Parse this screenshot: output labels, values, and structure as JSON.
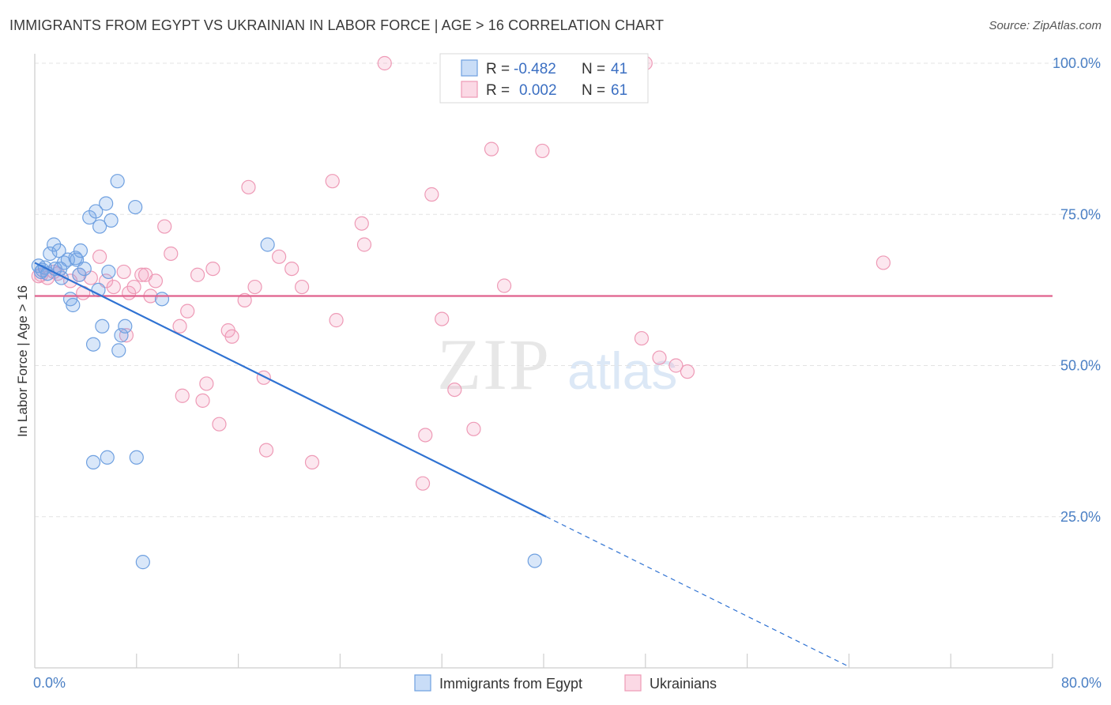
{
  "title": "IMMIGRANTS FROM EGYPT VS UKRAINIAN IN LABOR FORCE | AGE > 16 CORRELATION CHART",
  "source": "Source: ZipAtlas.com",
  "watermark": {
    "zip": "ZIP",
    "atlas": "atlas"
  },
  "colors": {
    "egypt_fill": "rgba(120,170,235,0.28)",
    "egypt_stroke": "#6fa0e0",
    "egypt_line": "#2f72d2",
    "ukr_fill": "rgba(245,160,190,0.25)",
    "ukr_stroke": "#ee9ab6",
    "ukr_line": "#e0628d",
    "tick": "#4a7fc4"
  },
  "legend": {
    "r_label": "R =",
    "n_label": "N =",
    "egypt_r": "-0.482",
    "egypt_n": "41",
    "ukr_r": "0.002",
    "ukr_n": "61"
  },
  "chart_data": {
    "type": "scatter",
    "xlabel": "",
    "ylabel": "In Labor Force | Age > 16",
    "xlim": [
      0,
      80
    ],
    "ylim": [
      0,
      100
    ],
    "x_tick_labels": [
      "0.0%",
      "80.0%"
    ],
    "y_ticks": [
      25,
      50,
      75,
      100
    ],
    "y_tick_labels": [
      "25.0%",
      "50.0%",
      "75.0%",
      "100.0%"
    ],
    "series": [
      {
        "name": "Immigrants from Egypt",
        "r": -0.482,
        "n": 41,
        "trend": {
          "x0": 0,
          "y0": 67.0,
          "x1": 40.2,
          "y1": 25.0,
          "dash_x1": 64.0,
          "dash_y1": 0.2
        },
        "points": [
          [
            0.3,
            66.5
          ],
          [
            0.5,
            65.5
          ],
          [
            0.6,
            65.8
          ],
          [
            0.8,
            66.2
          ],
          [
            1.0,
            65.2
          ],
          [
            1.2,
            68.5
          ],
          [
            1.5,
            70.0
          ],
          [
            1.6,
            66.0
          ],
          [
            1.9,
            69.0
          ],
          [
            2.1,
            64.5
          ],
          [
            2.3,
            67.0
          ],
          [
            2.6,
            67.5
          ],
          [
            2.8,
            61.0
          ],
          [
            3.0,
            60.0
          ],
          [
            3.2,
            67.8
          ],
          [
            3.3,
            67.5
          ],
          [
            3.5,
            65.0
          ],
          [
            3.6,
            69.0
          ],
          [
            3.9,
            66.0
          ],
          [
            4.3,
            74.5
          ],
          [
            4.6,
            53.5
          ],
          [
            4.8,
            75.5
          ],
          [
            5.0,
            62.5
          ],
          [
            5.1,
            73.0
          ],
          [
            5.3,
            56.5
          ],
          [
            5.6,
            76.8
          ],
          [
            5.8,
            65.5
          ],
          [
            6.0,
            74.0
          ],
          [
            6.5,
            80.5
          ],
          [
            6.6,
            52.5
          ],
          [
            6.8,
            55.0
          ],
          [
            7.1,
            56.5
          ],
          [
            7.9,
            76.2
          ],
          [
            4.6,
            34.0
          ],
          [
            5.7,
            34.8
          ],
          [
            8.0,
            34.8
          ],
          [
            8.5,
            17.5
          ],
          [
            10.0,
            61.0
          ],
          [
            18.3,
            70.0
          ],
          [
            39.3,
            17.7
          ],
          [
            2.0,
            66.0
          ]
        ]
      },
      {
        "name": "Ukrainians",
        "r": 0.002,
        "n": 61,
        "trend": {
          "y": 61.5
        },
        "points": [
          [
            0.5,
            65.0
          ],
          [
            1.0,
            64.5
          ],
          [
            1.5,
            65.5
          ],
          [
            2.8,
            64.0
          ],
          [
            3.5,
            65.0
          ],
          [
            3.8,
            62.0
          ],
          [
            4.4,
            64.5
          ],
          [
            5.1,
            68.0
          ],
          [
            5.6,
            64.0
          ],
          [
            6.2,
            63.0
          ],
          [
            7.0,
            65.5
          ],
          [
            7.2,
            55.0
          ],
          [
            7.4,
            62.0
          ],
          [
            7.8,
            63.0
          ],
          [
            8.4,
            65.0
          ],
          [
            8.7,
            65.0
          ],
          [
            9.1,
            61.5
          ],
          [
            9.5,
            64.0
          ],
          [
            10.2,
            73.0
          ],
          [
            10.7,
            68.5
          ],
          [
            11.4,
            56.5
          ],
          [
            11.6,
            45.0
          ],
          [
            12.0,
            59.0
          ],
          [
            12.8,
            65.0
          ],
          [
            13.2,
            44.2
          ],
          [
            13.5,
            47.0
          ],
          [
            14.0,
            66.0
          ],
          [
            14.5,
            40.3
          ],
          [
            15.2,
            55.8
          ],
          [
            15.5,
            54.8
          ],
          [
            16.5,
            60.8
          ],
          [
            16.8,
            79.5
          ],
          [
            17.3,
            63.0
          ],
          [
            18.0,
            48.0
          ],
          [
            18.2,
            36.0
          ],
          [
            19.2,
            68.0
          ],
          [
            20.2,
            66.0
          ],
          [
            21.0,
            63.0
          ],
          [
            21.8,
            34.0
          ],
          [
            23.4,
            80.5
          ],
          [
            23.7,
            57.5
          ],
          [
            25.7,
            73.5
          ],
          [
            25.9,
            70.0
          ],
          [
            27.5,
            100.0
          ],
          [
            30.5,
            30.5
          ],
          [
            30.7,
            38.5
          ],
          [
            31.2,
            78.3
          ],
          [
            32.0,
            57.7
          ],
          [
            33.0,
            46.0
          ],
          [
            34.5,
            39.5
          ],
          [
            35.9,
            85.8
          ],
          [
            36.9,
            63.2
          ],
          [
            39.9,
            85.5
          ],
          [
            47.7,
            54.5
          ],
          [
            48.0,
            100.0
          ],
          [
            49.1,
            51.3
          ],
          [
            50.4,
            50.0
          ],
          [
            51.3,
            49.0
          ],
          [
            66.7,
            67.0
          ],
          [
            0.3,
            64.8
          ],
          [
            1.8,
            65.2
          ]
        ]
      }
    ]
  }
}
